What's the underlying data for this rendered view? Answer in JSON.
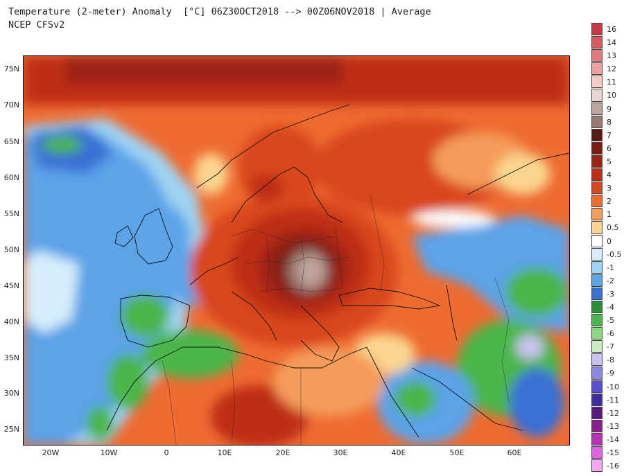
{
  "title_line1": "Temperature (2-meter) Anomaly  [°C] 06Z30OCT2018 --> 00Z06NOV2018 | Average",
  "title_line2": "NCEP CFSv2",
  "lat_labels": [
    "75N",
    "70N",
    "65N",
    "60N",
    "55N",
    "50N",
    "45N",
    "40N",
    "35N",
    "30N",
    "25N"
  ],
  "lon_labels": [
    "20W",
    "10W",
    "0",
    "10E",
    "20E",
    "30E",
    "40E",
    "50E",
    "60E"
  ],
  "colorbar": [
    {
      "label": "16",
      "color": "#c73a44"
    },
    {
      "label": "14",
      "color": "#d85a61"
    },
    {
      "label": "13",
      "color": "#e3787d"
    },
    {
      "label": "12",
      "color": "#ee9fa2"
    },
    {
      "label": "11",
      "color": "#f6ccca"
    },
    {
      "label": "10",
      "color": "#e8d6cf"
    },
    {
      "label": "9",
      "color": "#bfa39b"
    },
    {
      "label": "8",
      "color": "#9a7a70"
    },
    {
      "label": "7",
      "color": "#5a1a14"
    },
    {
      "label": "6",
      "color": "#7e1b12"
    },
    {
      "label": "5",
      "color": "#9d2214"
    },
    {
      "label": "4",
      "color": "#bd2d17"
    },
    {
      "label": "3",
      "color": "#d9461f"
    },
    {
      "label": "2",
      "color": "#ee6b31"
    },
    {
      "label": "1",
      "color": "#f59c5a"
    },
    {
      "label": "0.5",
      "color": "#fbd58f"
    },
    {
      "label": "0",
      "color": "#ffffff"
    },
    {
      "label": "-0.5",
      "color": "#d6eefb"
    },
    {
      "label": "-1",
      "color": "#9fd3f3"
    },
    {
      "label": "-2",
      "color": "#5ca3e8"
    },
    {
      "label": "-3",
      "color": "#3a6fd4"
    },
    {
      "label": "-4",
      "color": "#2a8f3a"
    },
    {
      "label": "-5",
      "color": "#4cb64a"
    },
    {
      "label": "-6",
      "color": "#8fd882"
    },
    {
      "label": "-7",
      "color": "#c7ecc0"
    },
    {
      "label": "-8",
      "color": "#c9c3f0"
    },
    {
      "label": "-9",
      "color": "#8f88e0"
    },
    {
      "label": "-10",
      "color": "#5a4fd0"
    },
    {
      "label": "-11",
      "color": "#3b2ca0"
    },
    {
      "label": "-12",
      "color": "#5a1c7a"
    },
    {
      "label": "-13",
      "color": "#8a1e8a"
    },
    {
      "label": "-14",
      "color": "#b82fb8"
    },
    {
      "label": "-15",
      "color": "#e064e0"
    },
    {
      "label": "-16",
      "color": "#f2a7f0"
    }
  ]
}
